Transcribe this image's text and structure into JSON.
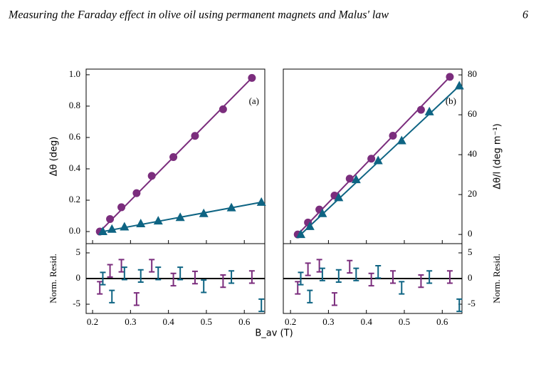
{
  "header": {
    "title": "Measuring the Faraday effect in olive oil using permanent magnets and Malus' law",
    "page": "6"
  },
  "chart_data": [
    {
      "type": "scatter",
      "annotation": "(a)",
      "ylabel": "Δθ (deg)",
      "yaxis_side": "left",
      "xtick_labels": false,
      "xlim": [
        0.183,
        0.654
      ],
      "xticks": [
        0.2,
        0.3,
        0.4,
        0.5,
        0.6
      ],
      "ylim": [
        -0.077,
        1.036
      ],
      "yticks": [
        {
          "value": 0,
          "label": "0.0"
        },
        0.2,
        0.4,
        0.6,
        0.8,
        {
          "value": 1,
          "label": "1.0"
        }
      ],
      "series": [
        {
          "color": "#7b2d7d",
          "marker": "circle",
          "x": [
            0.219,
            0.246,
            0.276,
            0.316,
            0.356,
            0.413,
            0.47,
            0.544,
            0.62
          ],
          "values": [
            0.0,
            0.08,
            0.155,
            0.245,
            0.355,
            0.475,
            0.61,
            0.78,
            0.98
          ]
        },
        {
          "color": "#0e6483",
          "marker": "triangle",
          "x": [
            0.227,
            0.251,
            0.284,
            0.327,
            0.373,
            0.431,
            0.493,
            0.566,
            0.645
          ],
          "values": [
            0.0,
            0.015,
            0.03,
            0.05,
            0.068,
            0.09,
            0.115,
            0.152,
            0.187
          ]
        }
      ],
      "fits": [
        {
          "color": "#7b2d7d",
          "x": [
            0.219,
            0.62
          ],
          "values": [
            0.0,
            0.98
          ]
        },
        {
          "color": "#0e6483",
          "x": [
            0.227,
            0.645
          ],
          "values": [
            0.0,
            0.187
          ]
        }
      ]
    },
    {
      "type": "errorbar",
      "ylabel": "Norm. Resid.",
      "xlabel": "B_av (T)",
      "yaxis_side": "left",
      "xtick_labels": true,
      "xlim": [
        0.183,
        0.654
      ],
      "xticks": [
        0.2,
        0.3,
        0.4,
        0.5,
        0.6
      ],
      "ylim": [
        -6.8,
        6.8
      ],
      "yticks": [
        -5,
        0,
        5
      ],
      "series": [
        {
          "color": "#7b2d7d",
          "x": [
            0.219,
            0.246,
            0.276,
            0.316,
            0.356,
            0.413,
            0.47,
            0.544,
            0.62
          ],
          "values": [
            -1.8,
            1.5,
            2.5,
            -4.0,
            2.5,
            -0.2,
            0.2,
            -0.5,
            0.3
          ],
          "errors": [
            1.2,
            1.2,
            1.2,
            1.2,
            1.2,
            1.2,
            1.2,
            1.2,
            1.2
          ]
        },
        {
          "color": "#0e6483",
          "x": [
            0.227,
            0.251,
            0.284,
            0.327,
            0.373,
            0.431,
            0.493,
            0.566,
            0.645
          ],
          "values": [
            0.0,
            -3.5,
            1.0,
            0.5,
            1.0,
            1.0,
            -1.5,
            0.3,
            -5.2
          ],
          "errors": [
            1.2,
            1.2,
            1.2,
            1.2,
            1.2,
            1.2,
            1.2,
            1.2,
            1.2
          ]
        }
      ]
    },
    {
      "type": "scatter",
      "annotation": "(b)",
      "ylabel": "Δθ/l (deg m⁻¹)",
      "yaxis_side": "right",
      "xtick_labels": false,
      "xlim": [
        0.181,
        0.652
      ],
      "xticks": [
        0.2,
        0.3,
        0.4,
        0.5,
        0.6
      ],
      "ylim": [
        -4.6,
        82.9
      ],
      "yticks": [
        0,
        20,
        40,
        60,
        80
      ],
      "series": [
        {
          "color": "#7b2d7d",
          "marker": "circle",
          "x": [
            0.219,
            0.246,
            0.276,
            0.316,
            0.356,
            0.413,
            0.47,
            0.544,
            0.62
          ],
          "values": [
            0,
            6,
            12.5,
            19.5,
            28,
            38,
            49.5,
            62.5,
            79
          ]
        },
        {
          "color": "#0e6483",
          "marker": "triangle",
          "x": [
            0.227,
            0.251,
            0.284,
            0.327,
            0.373,
            0.431,
            0.493,
            0.566,
            0.645
          ],
          "values": [
            0,
            4,
            10.5,
            18.5,
            27.5,
            37,
            47,
            61.5,
            74.5
          ]
        }
      ],
      "fits": [
        {
          "color": "#7b2d7d",
          "x": [
            0.219,
            0.62
          ],
          "values": [
            0,
            79
          ]
        },
        {
          "color": "#0e6483",
          "x": [
            0.227,
            0.645
          ],
          "values": [
            0,
            74.5
          ]
        }
      ]
    },
    {
      "type": "errorbar",
      "ylabel": "Norm. Resid.",
      "yaxis_side": "right",
      "xtick_labels": true,
      "xlim": [
        0.181,
        0.652
      ],
      "xticks": [
        0.2,
        0.3,
        0.4,
        0.5,
        0.6
      ],
      "ylim": [
        -6.8,
        6.8
      ],
      "yticks": [
        -5,
        0,
        5
      ],
      "series": [
        {
          "color": "#7b2d7d",
          "x": [
            0.219,
            0.246,
            0.276,
            0.316,
            0.356,
            0.413,
            0.47,
            0.544,
            0.62
          ],
          "values": [
            -1.8,
            1.8,
            2.5,
            -4.0,
            2.3,
            -0.2,
            0.3,
            -0.5,
            0.3
          ],
          "errors": [
            1.2,
            1.2,
            1.2,
            1.2,
            1.2,
            1.2,
            1.2,
            1.2,
            1.2
          ]
        },
        {
          "color": "#0e6483",
          "x": [
            0.227,
            0.251,
            0.284,
            0.327,
            0.373,
            0.431,
            0.493,
            0.566,
            0.645
          ],
          "values": [
            0.0,
            -3.5,
            0.8,
            0.5,
            0.8,
            1.3,
            -1.8,
            0.3,
            -5.2
          ],
          "errors": [
            1.2,
            1.2,
            1.2,
            1.2,
            1.2,
            1.2,
            1.2,
            1.2,
            1.2
          ]
        }
      ]
    }
  ]
}
